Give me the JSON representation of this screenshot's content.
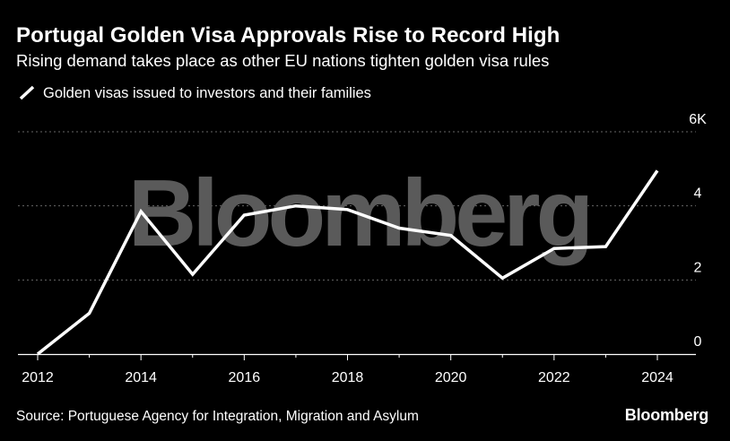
{
  "header": {
    "title": "Portugal Golden Visa Approvals Rise to Record High",
    "subtitle": "Rising demand takes place as other EU nations tighten golden visa rules"
  },
  "legend": {
    "label": "Golden visas issued to investors and their families"
  },
  "watermark": "Bloomberg",
  "footer": {
    "source": "Source: Portuguese Agency for Integration, Migration and Asylum",
    "brand": "Bloomberg"
  },
  "colors": {
    "background": "#000000",
    "line": "#ffffff",
    "grid": "#666666",
    "watermark": "#5a5a5a"
  },
  "chart_data": {
    "type": "line",
    "title": "Portugal Golden Visa Approvals Rise to Record High",
    "subtitle": "Rising demand takes place as other EU nations tighten golden visa rules",
    "x": [
      2012,
      2013,
      2014,
      2015,
      2016,
      2017,
      2018,
      2019,
      2020,
      2021,
      2022,
      2023,
      2024
    ],
    "series": [
      {
        "name": "Golden visas issued to investors and their families",
        "values": [
          0.0,
          1.1,
          3.85,
          2.15,
          3.75,
          4.0,
          3.9,
          3.4,
          3.2,
          2.05,
          2.85,
          2.9,
          4.95
        ]
      }
    ],
    "x_ticks": [
      "2012",
      "2014",
      "2016",
      "2018",
      "2020",
      "2022",
      "2024"
    ],
    "y_ticks": [
      "0",
      "2",
      "4",
      "6K"
    ],
    "y_tick_values": [
      0,
      2,
      4,
      6
    ],
    "xlim": [
      2012,
      2024
    ],
    "ylim": [
      0,
      6
    ],
    "grid": "horizontal dotted",
    "legend_position": "top-left",
    "y_axis_position": "right"
  }
}
